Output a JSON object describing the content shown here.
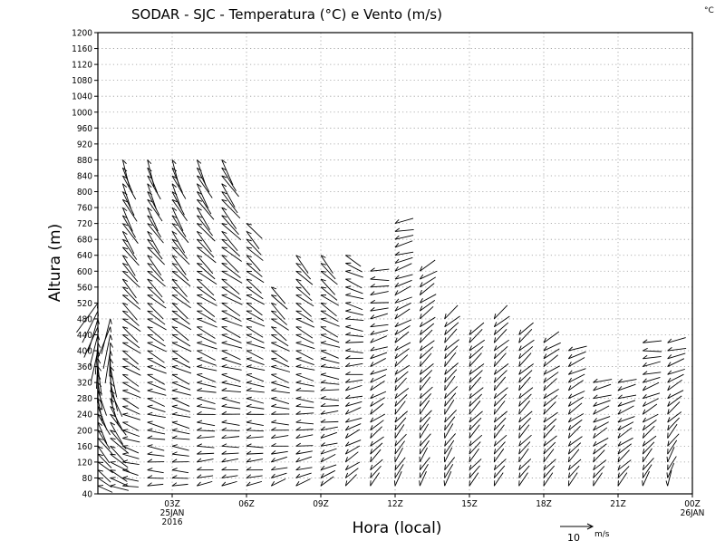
{
  "chart_data": {
    "type": "wind-barb profile (time-height)",
    "title": "SODAR - SJC - Temperatura (°C) e Vento (m/s)",
    "units_corner": "°C",
    "xlabel": "Hora (local)",
    "ylabel": "Altura (m)",
    "ylim": [
      40,
      1200
    ],
    "y_ticks": [
      40,
      80,
      120,
      160,
      200,
      240,
      280,
      320,
      360,
      400,
      440,
      480,
      520,
      560,
      600,
      640,
      680,
      720,
      760,
      800,
      840,
      880,
      920,
      960,
      1000,
      1040,
      1080,
      1120,
      1160,
      1200
    ],
    "x_range_hours": [
      0,
      24
    ],
    "x_ticks": [
      {
        "hour": 3,
        "label": "03Z",
        "sub1": "25JAN",
        "sub2": "2016"
      },
      {
        "hour": 6,
        "label": "06Z"
      },
      {
        "hour": 9,
        "label": "09Z"
      },
      {
        "hour": 12,
        "label": "12Z"
      },
      {
        "hour": 15,
        "label": "15Z"
      },
      {
        "hour": 18,
        "label": "18Z"
      },
      {
        "hour": 21,
        "label": "21Z"
      },
      {
        "hour": 24,
        "label": "00Z",
        "sub1": "26JAN"
      }
    ],
    "grid": "dotted",
    "reference_vector": {
      "value": 10,
      "label": "10",
      "unit": "m/s"
    },
    "series": [
      {
        "hour": 0.0,
        "top": 520,
        "s0": 3,
        "s1": 10,
        "d0": 120,
        "d1": 210
      },
      {
        "hour": 0.5,
        "top": 480,
        "s0": 4,
        "s1": 10,
        "d0": 110,
        "d1": 200
      },
      {
        "hour": 1.0,
        "top": 880,
        "s0": 3,
        "s1": 7,
        "d0": 100,
        "d1": 160
      },
      {
        "hour": 2.0,
        "top": 880,
        "s0": 3,
        "s1": 7,
        "d0": 90,
        "d1": 160
      },
      {
        "hour": 3.0,
        "top": 890,
        "s0": 3,
        "s1": 7,
        "d0": 90,
        "d1": 160
      },
      {
        "hour": 4.0,
        "top": 880,
        "s0": 3,
        "s1": 7,
        "d0": 80,
        "d1": 155
      },
      {
        "hour": 5.0,
        "top": 880,
        "s0": 3,
        "s1": 7,
        "d0": 80,
        "d1": 150
      },
      {
        "hour": 6.0,
        "top": 720,
        "s0": 3,
        "s1": 5,
        "d0": 80,
        "d1": 140
      },
      {
        "hour": 7.0,
        "top": 560,
        "s0": 3,
        "s1": 5,
        "d0": 70,
        "d1": 140
      },
      {
        "hour": 8.0,
        "top": 640,
        "s0": 3,
        "s1": 5,
        "d0": 70,
        "d1": 140
      },
      {
        "hour": 9.0,
        "top": 640,
        "s0": 3,
        "s1": 5,
        "d0": 60,
        "d1": 140
      },
      {
        "hour": 10.0,
        "top": 640,
        "s0": 3,
        "s1": 4,
        "d0": 50,
        "d1": 120
      },
      {
        "hour": 11.0,
        "top": 600,
        "s0": 3,
        "s1": 4,
        "d0": 40,
        "d1": 90
      },
      {
        "hour": 12.0,
        "top": 720,
        "s0": 3,
        "s1": 4,
        "d0": 30,
        "d1": 80
      },
      {
        "hour": 13.0,
        "top": 600,
        "s0": 3,
        "s1": 4,
        "d0": 30,
        "d1": 60
      },
      {
        "hour": 14.0,
        "top": 480,
        "s0": 3,
        "s1": 4,
        "d0": 30,
        "d1": 50
      },
      {
        "hour": 15.0,
        "top": 440,
        "s0": 3,
        "s1": 4,
        "d0": 40,
        "d1": 50
      },
      {
        "hour": 16.0,
        "top": 480,
        "s0": 3,
        "s1": 4,
        "d0": 40,
        "d1": 50
      },
      {
        "hour": 17.0,
        "top": 440,
        "s0": 3,
        "s1": 4,
        "d0": 40,
        "d1": 50
      },
      {
        "hour": 18.0,
        "top": 420,
        "s0": 3,
        "s1": 4,
        "d0": 40,
        "d1": 60
      },
      {
        "hour": 19.0,
        "top": 400,
        "s0": 3,
        "s1": 4,
        "d0": 40,
        "d1": 70
      },
      {
        "hour": 20.0,
        "top": 320,
        "s0": 3,
        "s1": 4,
        "d0": 40,
        "d1": 80
      },
      {
        "hour": 21.0,
        "top": 320,
        "s0": 3,
        "s1": 4,
        "d0": 40,
        "d1": 80
      },
      {
        "hour": 22.0,
        "top": 420,
        "s0": 3,
        "s1": 4,
        "d0": 30,
        "d1": 90
      },
      {
        "hour": 23.0,
        "top": 420,
        "s0": 3,
        "s1": 4,
        "d0": 20,
        "d1": 80
      }
    ]
  }
}
